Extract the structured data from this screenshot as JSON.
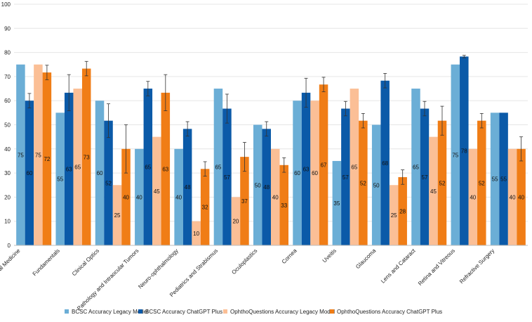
{
  "chart_data": {
    "type": "bar",
    "title": "",
    "xlabel": "",
    "ylabel": "",
    "ylim": [
      0,
      100
    ],
    "yticks": [
      0,
      10,
      20,
      30,
      40,
      50,
      60,
      70,
      80,
      90,
      100
    ],
    "grid": true,
    "legend_position": "bottom",
    "categories": [
      "General Medicine",
      "Fundamentals",
      "Clinical Optics",
      "Pathology and Intraocular Tumors",
      "Neuro-ophthalmology",
      "Pediatrics and Strabismus",
      "Oculoplastics",
      "Cornea",
      "Uveitis",
      "Glaucoma",
      "Lens and Cataract",
      "Retina and Vitreous",
      "Refractive Surgery"
    ],
    "series": [
      {
        "name": "BCSC Accuracy Legacy Model",
        "color": "#6baed6",
        "values": [
          75,
          55,
          60,
          40,
          40,
          65,
          50,
          60,
          35,
          50,
          65,
          75,
          55
        ],
        "labels": [
          "75",
          "55",
          "60",
          "40",
          "40",
          "65",
          "50",
          "60",
          "35",
          "50",
          "65",
          "75",
          "55"
        ],
        "error": null
      },
      {
        "name": "BCSC Accuracy ChatGPT Plus",
        "color": "#0b5aa8",
        "values": [
          60,
          63.3,
          51.7,
          65,
          48.3,
          56.7,
          48.3,
          63.3,
          56.7,
          68.3,
          56.7,
          78.3,
          55
        ],
        "labels": [
          "60",
          "63",
          "52",
          "65",
          "48",
          "57",
          "48",
          "63",
          "57",
          "68",
          "57",
          "78",
          "55"
        ],
        "error": [
          3,
          7.5,
          7,
          3,
          3,
          6,
          3,
          6,
          3,
          3,
          3,
          0.5,
          0
        ]
      },
      {
        "name": "OphthoQuestions Accuracy Legacy Model",
        "color": "#fbbf96",
        "values": [
          75,
          65,
          25,
          45,
          10,
          20,
          40,
          60,
          65,
          25,
          45,
          40,
          40
        ],
        "labels": [
          "75",
          "65",
          "25",
          "45",
          "10",
          "20",
          "40",
          "60",
          "65",
          "25",
          "45",
          "40",
          "40"
        ],
        "error": null
      },
      {
        "name": "OphthoQuestions Accuracy ChatGPT Plus",
        "color": "#f07d16",
        "values": [
          71.7,
          73.3,
          40,
          63.3,
          31.7,
          36.7,
          33.3,
          66.7,
          51.7,
          28.3,
          51.7,
          51.7,
          40
        ],
        "labels": [
          "72",
          "73",
          "40",
          "63",
          "32",
          "37",
          "33",
          "67",
          "52",
          "28",
          "52",
          "52",
          "40"
        ],
        "error": [
          3,
          3,
          10,
          7.5,
          3,
          6,
          3,
          3,
          3,
          3,
          6,
          3,
          5
        ]
      }
    ]
  }
}
